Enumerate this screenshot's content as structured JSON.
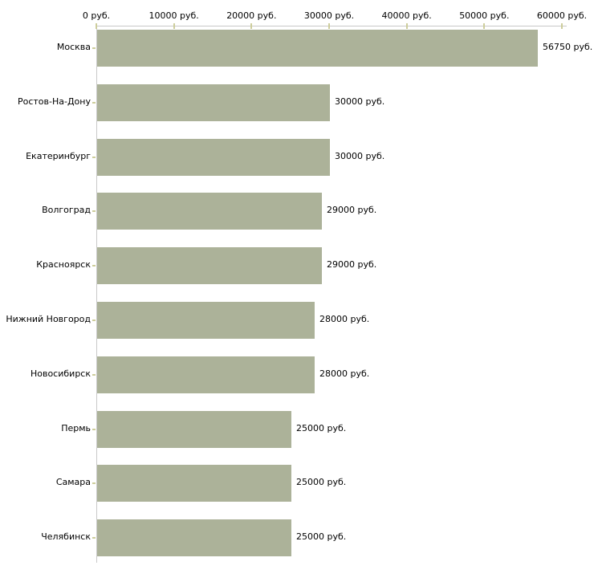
{
  "chart": {
    "background_color": "#ffffff",
    "bar_color": "#acb299",
    "axis_line_color": "#c9c9c9",
    "tick_mark_color": "#cdcd9b",
    "text_color": "#000000"
  },
  "chart_data": {
    "type": "bar",
    "orientation": "horizontal",
    "title": "",
    "xlabel": "",
    "ylabel": "",
    "xlim": [
      0,
      60000
    ],
    "grid": false,
    "legend": false,
    "x_axis_position": "top",
    "x_ticks": [
      {
        "value": 0,
        "label": "0 руб."
      },
      {
        "value": 10000,
        "label": "10000 руб."
      },
      {
        "value": 20000,
        "label": "20000 руб."
      },
      {
        "value": 30000,
        "label": "30000 руб."
      },
      {
        "value": 40000,
        "label": "40000 руб."
      },
      {
        "value": 50000,
        "label": "50000 руб."
      },
      {
        "value": 60000,
        "label": "60000 руб."
      }
    ],
    "categories": [
      "Москва",
      "Ростов-На-Дону",
      "Екатеринбург",
      "Волгоград",
      "Красноярск",
      "Нижний Новгород",
      "Новосибирск",
      "Пермь",
      "Самара",
      "Челябинск"
    ],
    "values": [
      56750,
      30000,
      30000,
      29000,
      29000,
      28000,
      28000,
      25000,
      25000,
      25000
    ],
    "bar_labels": [
      "56750 руб.",
      "30000 руб.",
      "30000 руб.",
      "29000 руб.",
      "29000 руб.",
      "28000 руб.",
      "28000 руб.",
      "25000 руб.",
      "25000 руб.",
      "25000 руб."
    ]
  }
}
